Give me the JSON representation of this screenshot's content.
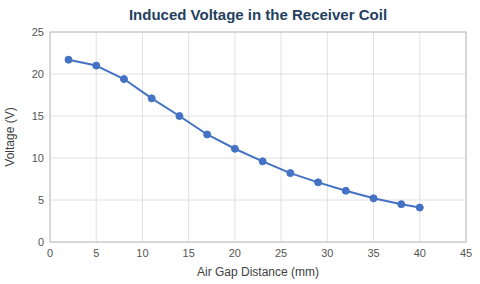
{
  "chart_data": {
    "type": "line",
    "title": "Induced Voltage in the Receiver Coil",
    "xlabel": "Air Gap Distance (mm)",
    "ylabel": "Voltage (V)",
    "x": [
      2,
      5,
      8,
      11,
      14,
      17,
      20,
      23,
      26,
      29,
      32,
      35,
      38,
      40
    ],
    "values": [
      21.7,
      21.0,
      19.4,
      17.1,
      15.0,
      12.8,
      11.1,
      9.6,
      8.2,
      7.1,
      6.1,
      5.2,
      4.5,
      4.1
    ],
    "color": "#4472C4",
    "marker": "circle",
    "xlim": [
      0,
      45
    ],
    "ylim": [
      0,
      25
    ],
    "xticks": [
      0,
      5,
      10,
      15,
      20,
      25,
      30,
      35,
      40,
      45
    ],
    "yticks": [
      0,
      5,
      10,
      15,
      20,
      25
    ],
    "grid": true
  }
}
